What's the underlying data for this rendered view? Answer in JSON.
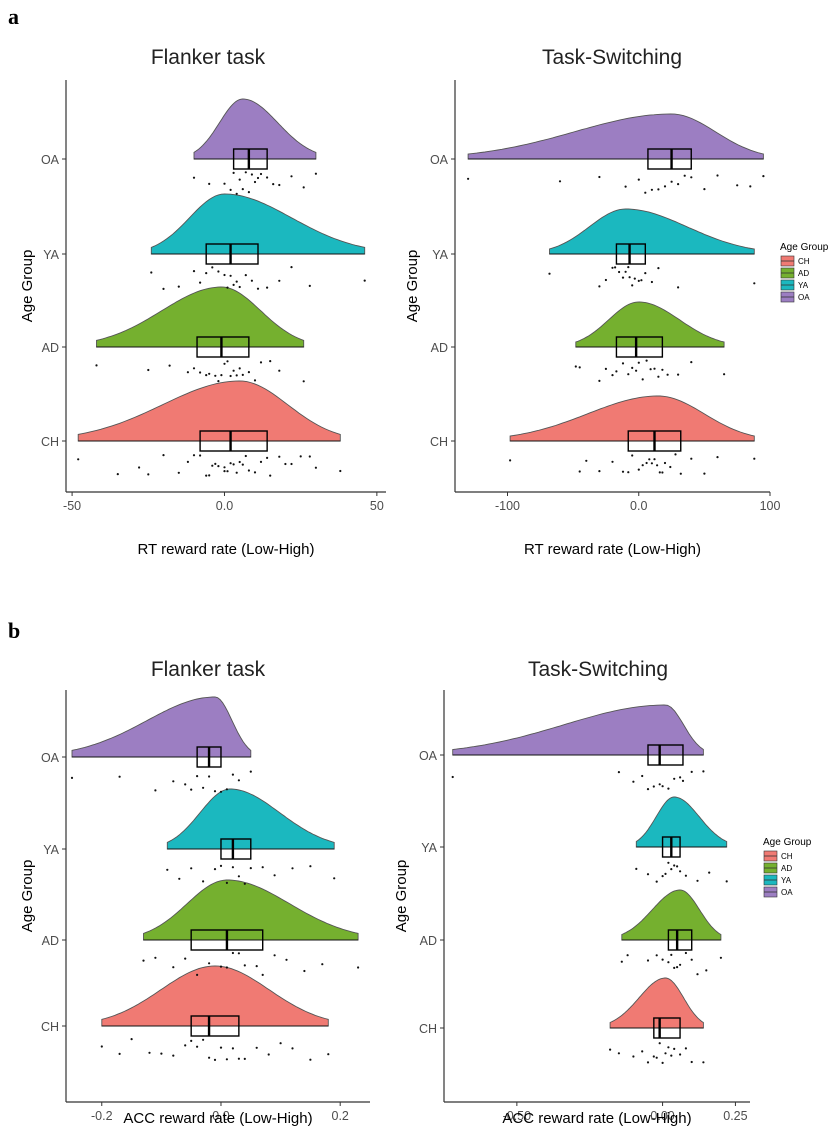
{
  "figure": {
    "panel_labels": [
      "a",
      "b"
    ]
  },
  "colors": {
    "CH": "#F07A73",
    "AD": "#75B02F",
    "YA": "#1BB8BF",
    "OA": "#9C7EC2",
    "axis": "#333333",
    "tick_text": "#4d4d4d"
  },
  "legend": {
    "title": "Age Group",
    "items": [
      "CH",
      "AD",
      "YA",
      "OA"
    ]
  },
  "chart_data": [
    {
      "type": "raincloud",
      "panel": "a",
      "title": "Flanker task",
      "xlabel": "RT reward rate (Low-High)",
      "ylabel": "Age Group",
      "xlim": [
        -52,
        53
      ],
      "xticks": [
        -50,
        0,
        50
      ],
      "xtick_labels": [
        "-50",
        "0.0",
        "50"
      ],
      "categories": [
        "CH",
        "AD",
        "YA",
        "OA"
      ],
      "series": [
        {
          "name": "CH",
          "min": -48,
          "q1": -8,
          "median": 2,
          "q3": 14,
          "max": 38,
          "mode": 5,
          "points": [
            -48,
            -35,
            -28,
            -25,
            -20,
            -15,
            -12,
            -10,
            -8,
            -6,
            -5,
            -4,
            -3,
            -2,
            0,
            0,
            1,
            2,
            3,
            4,
            5,
            6,
            7,
            8,
            10,
            12,
            14,
            15,
            18,
            20,
            22,
            25,
            28,
            30,
            38
          ]
        },
        {
          "name": "AD",
          "min": -42,
          "q1": -9,
          "median": -1,
          "q3": 8,
          "max": 26,
          "mode": -1,
          "points": [
            -42,
            -25,
            -18,
            -12,
            -10,
            -8,
            -6,
            -5,
            -3,
            -2,
            -1,
            0,
            1,
            2,
            3,
            4,
            5,
            6,
            8,
            10,
            12,
            15,
            18,
            26
          ]
        },
        {
          "name": "YA",
          "min": -24,
          "q1": -6,
          "median": 2,
          "q3": 11,
          "max": 46,
          "mode": 0,
          "points": [
            -24,
            -20,
            -15,
            -10,
            -8,
            -6,
            -4,
            -2,
            0,
            1,
            2,
            3,
            4,
            5,
            7,
            9,
            11,
            14,
            18,
            22,
            28,
            46
          ]
        },
        {
          "name": "OA",
          "min": -10,
          "q1": 3,
          "median": 8,
          "q3": 14,
          "max": 30,
          "mode": 6,
          "points": [
            -10,
            -5,
            0,
            2,
            3,
            4,
            5,
            6,
            7,
            8,
            9,
            10,
            11,
            12,
            14,
            16,
            18,
            22,
            26,
            30
          ]
        }
      ]
    },
    {
      "type": "raincloud",
      "panel": "a",
      "title": "Task-Switching",
      "xlabel": "RT reward rate (Low-High)",
      "ylabel": "Age Group",
      "xlim": [
        -140,
        100
      ],
      "xticks": [
        -100,
        0,
        100
      ],
      "xtick_labels": [
        "-100",
        "0.0",
        "100"
      ],
      "categories": [
        "CH",
        "AD",
        "YA",
        "OA"
      ],
      "series": [
        {
          "name": "CH",
          "min": -98,
          "q1": -8,
          "median": 12,
          "q3": 32,
          "max": 88,
          "mode": 15,
          "points": [
            -98,
            -45,
            -40,
            -30,
            -20,
            -12,
            -8,
            -5,
            0,
            3,
            6,
            8,
            10,
            12,
            14,
            16,
            18,
            20,
            24,
            28,
            32,
            40,
            50,
            60,
            88
          ]
        },
        {
          "name": "AD",
          "min": -48,
          "q1": -17,
          "median": -2,
          "q3": 18,
          "max": 65,
          "mode": 0,
          "points": [
            -48,
            -45,
            -30,
            -25,
            -20,
            -17,
            -12,
            -8,
            -5,
            -2,
            0,
            3,
            6,
            9,
            12,
            15,
            18,
            22,
            30,
            40,
            65
          ]
        },
        {
          "name": "YA",
          "min": -68,
          "q1": -17,
          "median": -7,
          "q3": 5,
          "max": 88,
          "mode": -10,
          "points": [
            -68,
            -30,
            -25,
            -20,
            -18,
            -15,
            -12,
            -10,
            -8,
            -7,
            -5,
            -3,
            0,
            2,
            5,
            10,
            15,
            30,
            88
          ]
        },
        {
          "name": "OA",
          "min": -130,
          "q1": 7,
          "median": 25,
          "q3": 40,
          "max": 95,
          "mode": 25,
          "points": [
            -130,
            -60,
            -30,
            -10,
            0,
            5,
            10,
            15,
            20,
            25,
            30,
            35,
            40,
            50,
            60,
            75,
            85,
            95
          ]
        }
      ]
    },
    {
      "type": "raincloud",
      "panel": "b",
      "title": "Flanker task",
      "xlabel": "ACC reward rate (Low-High)",
      "ylabel": "Age Group",
      "xlim": [
        -0.26,
        0.25
      ],
      "xticks": [
        -0.2,
        0,
        0.2
      ],
      "xtick_labels": [
        "-0.2",
        "0.0",
        "0.2"
      ],
      "categories": [
        "CH",
        "AD",
        "YA",
        "OA"
      ],
      "series": [
        {
          "name": "CH",
          "min": -0.2,
          "q1": -0.05,
          "median": -0.02,
          "q3": 0.03,
          "max": 0.18,
          "mode": -0.01,
          "points": [
            -0.2,
            -0.17,
            -0.15,
            -0.12,
            -0.1,
            -0.08,
            -0.06,
            -0.05,
            -0.04,
            -0.03,
            -0.02,
            -0.01,
            0,
            0.01,
            0.02,
            0.03,
            0.04,
            0.06,
            0.08,
            0.1,
            0.12,
            0.15,
            0.18
          ]
        },
        {
          "name": "AD",
          "min": -0.13,
          "q1": -0.05,
          "median": 0.01,
          "q3": 0.07,
          "max": 0.23,
          "mode": 0.01,
          "points": [
            -0.13,
            -0.11,
            -0.08,
            -0.06,
            -0.04,
            -0.02,
            0,
            0.01,
            0.02,
            0.03,
            0.04,
            0.06,
            0.07,
            0.09,
            0.11,
            0.14,
            0.17,
            0.23
          ]
        },
        {
          "name": "YA",
          "min": -0.09,
          "q1": 0,
          "median": 0.02,
          "q3": 0.05,
          "max": 0.19,
          "mode": 0.015,
          "points": [
            -0.09,
            -0.07,
            -0.05,
            -0.03,
            -0.01,
            0,
            0.01,
            0.02,
            0.03,
            0.04,
            0.05,
            0.07,
            0.09,
            0.12,
            0.15,
            0.19
          ]
        },
        {
          "name": "OA",
          "min": -0.25,
          "q1": -0.04,
          "median": -0.02,
          "q3": 0,
          "max": 0.05,
          "mode": -0.01,
          "points": [
            -0.25,
            -0.17,
            -0.11,
            -0.08,
            -0.06,
            -0.05,
            -0.04,
            -0.03,
            -0.02,
            -0.01,
            0,
            0.01,
            0.02,
            0.03,
            0.05
          ]
        }
      ]
    },
    {
      "type": "raincloud",
      "panel": "b",
      "title": "Task-Switching",
      "xlabel": "ACC reward rate (Low-High)",
      "ylabel": "Age Group",
      "xlim": [
        -0.75,
        0.3
      ],
      "xticks": [
        -0.5,
        0,
        0.25
      ],
      "xtick_labels": [
        "-0.50",
        "0.00",
        "0.25"
      ],
      "categories": [
        "CH",
        "AD",
        "YA",
        "OA"
      ],
      "series": [
        {
          "name": "CH",
          "min": -0.18,
          "q1": -0.03,
          "median": -0.01,
          "q3": 0.06,
          "max": 0.14,
          "mode": 0.01,
          "points": [
            -0.18,
            -0.15,
            -0.1,
            -0.07,
            -0.05,
            -0.03,
            -0.02,
            -0.01,
            0,
            0.01,
            0.02,
            0.03,
            0.04,
            0.06,
            0.08,
            0.1,
            0.14
          ]
        },
        {
          "name": "AD",
          "min": -0.14,
          "q1": 0.02,
          "median": 0.05,
          "q3": 0.1,
          "max": 0.2,
          "mode": 0.06,
          "points": [
            -0.14,
            -0.12,
            -0.05,
            -0.02,
            0,
            0.02,
            0.03,
            0.04,
            0.05,
            0.06,
            0.08,
            0.1,
            0.12,
            0.15,
            0.2
          ]
        },
        {
          "name": "YA",
          "min": -0.09,
          "q1": 0,
          "median": 0.03,
          "q3": 0.06,
          "max": 0.22,
          "mode": 0.04,
          "points": [
            -0.09,
            -0.05,
            -0.02,
            0,
            0.01,
            0.02,
            0.03,
            0.04,
            0.05,
            0.06,
            0.08,
            0.12,
            0.16,
            0.22
          ]
        },
        {
          "name": "OA",
          "min": -0.72,
          "q1": -0.05,
          "median": -0.01,
          "q3": 0.07,
          "max": 0.14,
          "mode": 0.01,
          "points": [
            -0.72,
            -0.15,
            -0.1,
            -0.07,
            -0.05,
            -0.03,
            -0.01,
            0,
            0.02,
            0.04,
            0.06,
            0.07,
            0.1,
            0.14
          ]
        }
      ]
    }
  ]
}
